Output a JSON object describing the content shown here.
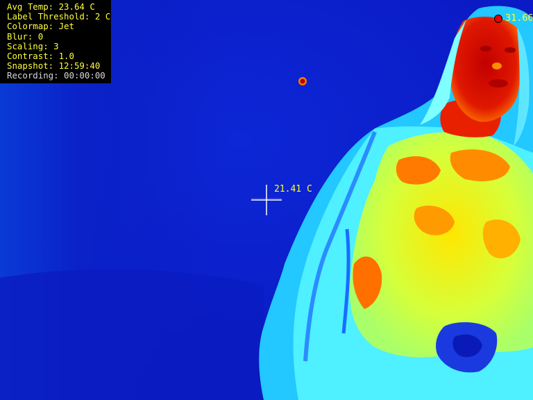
{
  "hud": {
    "avg_temp": "Avg Temp: 23.64 C",
    "label_threshold": "Label Threshold: 2 C",
    "colormap": "Colormap: Jet",
    "blur": "Blur: 0",
    "scaling": "Scaling: 3",
    "contrast": "Contrast: 1.0",
    "snapshot": "Snapshot: 12:59:40",
    "recording": "Recording: 00:00:00"
  },
  "center_temp": "21.41 C",
  "max_temp": "31.66",
  "colors": {
    "hud_text": "#ffff3a",
    "hud_background": "#000000",
    "recording_text": "#d8d8d8",
    "crosshair": "#ffffff",
    "max_marker": "#e10000"
  }
}
